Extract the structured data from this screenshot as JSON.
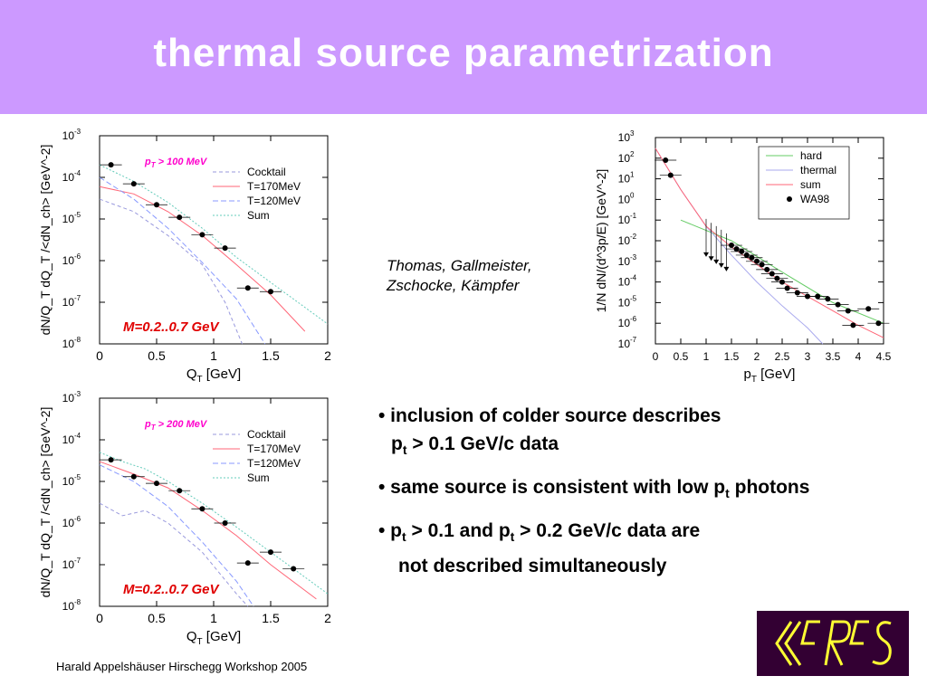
{
  "slide": {
    "title": "thermal source parametrization",
    "header_color": "#cc99ff",
    "citation": [
      "Thomas, Gallmeister,",
      "Zschocke, Kämpfer"
    ],
    "bullets": [
      {
        "parts": [
          "• inclusion of colder source describes",
          "p",
          "t",
          " > 0.1 GeV/c data"
        ]
      },
      {
        "parts": [
          "• same source is consistent with low p",
          "t",
          " photons"
        ]
      },
      {
        "parts": [
          "• p",
          "t",
          " > 0.1 and p",
          "t",
          " > 0.2 GeV/c data are",
          "not described simultaneously"
        ]
      }
    ],
    "footer": "Harald Appelshäuser  Hirschegg Workshop 2005",
    "logo_text": "CERES",
    "logo_colors": {
      "background": "#330033",
      "text": "#ffff33"
    }
  },
  "chart_data": [
    {
      "type": "line",
      "log_y": true,
      "xlim": [
        0,
        2
      ],
      "ylim": [
        1e-08,
        0.001
      ],
      "xticks": [
        "0",
        "0.5",
        "1",
        "1.5",
        "2"
      ],
      "yticks_exp": [
        "-8",
        "-7",
        "-6",
        "-5",
        "-4",
        "-3"
      ],
      "xlabel": [
        "Q",
        "T",
        " [GeV]"
      ],
      "ylabel": "dN/Q_T dQ_T /<dN_ch> [GeV^-2]",
      "annotation": [
        "p",
        "T",
        " > 100 MeV"
      ],
      "mass_label": "M=0.2..0.7 GeV",
      "legend": [
        "Cocktail",
        "T=170MeV",
        "T=120MeV",
        "Sum"
      ],
      "legend_placement": "right",
      "points": [
        {
          "x": 0.1,
          "y": 0.0002
        },
        {
          "x": 0.3,
          "y": 7e-05
        },
        {
          "x": 0.5,
          "y": 2.2e-05
        },
        {
          "x": 0.7,
          "y": 1.1e-05
        },
        {
          "x": 0.9,
          "y": 4.2e-06
        },
        {
          "x": 1.1,
          "y": 2e-06
        },
        {
          "x": 1.3,
          "y": 2.2e-07
        },
        {
          "x": 1.5,
          "y": 1.8e-07
        }
      ],
      "curves": {
        "cocktail": [
          [
            0,
            3e-05
          ],
          [
            0.3,
            1.5e-05
          ],
          [
            0.6,
            4e-06
          ],
          [
            0.9,
            8e-07
          ],
          [
            1.1,
            1e-07
          ],
          [
            1.25,
            1e-08
          ]
        ],
        "t170": [
          [
            0,
            6e-05
          ],
          [
            0.3,
            4e-05
          ],
          [
            0.6,
            1.5e-05
          ],
          [
            0.9,
            4e-06
          ],
          [
            1.2,
            8e-07
          ],
          [
            1.5,
            1.5e-07
          ],
          [
            1.8,
            2e-08
          ]
        ],
        "t120": [
          [
            0,
            0.0001
          ],
          [
            0.3,
            3e-05
          ],
          [
            0.6,
            6e-06
          ],
          [
            0.9,
            9e-07
          ],
          [
            1.2,
            1.2e-07
          ],
          [
            1.45,
            1e-08
          ]
        ],
        "sum": [
          [
            0,
            0.0002
          ],
          [
            0.3,
            8e-05
          ],
          [
            0.6,
            2.5e-05
          ],
          [
            0.9,
            6e-06
          ],
          [
            1.2,
            1.2e-06
          ],
          [
            1.5,
            3e-07
          ],
          [
            2,
            3e-08
          ]
        ]
      }
    },
    {
      "type": "line",
      "log_y": true,
      "xlim": [
        0,
        2
      ],
      "ylim": [
        1e-08,
        0.001
      ],
      "xticks": [
        "0",
        "0.5",
        "1",
        "1.5",
        "2"
      ],
      "yticks_exp": [
        "-8",
        "-7",
        "-6",
        "-5",
        "-4",
        "-3"
      ],
      "xlabel": [
        "Q",
        "T",
        " [GeV]"
      ],
      "ylabel": "dN/Q_T dQ_T /<dN_ch> [GeV^-2]",
      "annotation": [
        "p",
        "T",
        " > 200 MeV"
      ],
      "mass_label": "M=0.2..0.7 GeV",
      "legend": [
        "Cocktail",
        "T=170MeV",
        "T=120MeV",
        "Sum"
      ],
      "legend_placement": "right",
      "points": [
        {
          "x": 0.1,
          "y": 3.3e-05
        },
        {
          "x": 0.3,
          "y": 1.3e-05
        },
        {
          "x": 0.5,
          "y": 9e-06
        },
        {
          "x": 0.7,
          "y": 6e-06
        },
        {
          "x": 0.9,
          "y": 2.2e-06
        },
        {
          "x": 1.1,
          "y": 1e-06
        },
        {
          "x": 1.3,
          "y": 1.1e-07
        },
        {
          "x": 1.5,
          "y": 2e-07
        },
        {
          "x": 1.7,
          "y": 8e-08
        }
      ],
      "curves": {
        "cocktail": [
          [
            0,
            3e-06
          ],
          [
            0.2,
            1.5e-06
          ],
          [
            0.4,
            2e-06
          ],
          [
            0.6,
            1e-06
          ],
          [
            0.9,
            2e-07
          ],
          [
            1.2,
            2e-08
          ],
          [
            1.3,
            1e-08
          ]
        ],
        "t170": [
          [
            0,
            3e-05
          ],
          [
            0.3,
            1.5e-05
          ],
          [
            0.6,
            7e-06
          ],
          [
            0.9,
            2e-06
          ],
          [
            1.2,
            5e-07
          ],
          [
            1.5,
            1e-07
          ],
          [
            1.9,
            1.5e-08
          ]
        ],
        "t120": [
          [
            0,
            2.5e-05
          ],
          [
            0.3,
            1e-05
          ],
          [
            0.6,
            2.5e-06
          ],
          [
            0.9,
            3.5e-07
          ],
          [
            1.2,
            4e-08
          ],
          [
            1.35,
            1e-08
          ]
        ],
        "sum": [
          [
            0,
            5e-05
          ],
          [
            0.2,
            3e-05
          ],
          [
            0.4,
            2e-05
          ],
          [
            0.6,
            1e-05
          ],
          [
            0.9,
            3e-06
          ],
          [
            1.2,
            8e-07
          ],
          [
            1.5,
            2e-07
          ],
          [
            2,
            2e-08
          ]
        ]
      }
    },
    {
      "type": "line",
      "log_y": true,
      "xlim": [
        0,
        4.5
      ],
      "ylim": [
        1e-07,
        1000.0
      ],
      "xticks": [
        "0",
        "0.5",
        "1",
        "1.5",
        "2",
        "2.5",
        "3",
        "3.5",
        "4",
        "4.5"
      ],
      "yticks_exp": [
        "-7",
        "-6",
        "-5",
        "-4",
        "-3",
        "-2",
        "-1",
        "0",
        "1",
        "2",
        "3"
      ],
      "xlabel": [
        "p",
        "T",
        " [GeV]"
      ],
      "ylabel": "1/N dN/(d^3p/E) [GeV^-2]",
      "legend": [
        "hard",
        "thermal",
        "sum",
        "WA98"
      ],
      "legend_placement": "top-right",
      "points": [
        {
          "x": 0.2,
          "y": 80
        },
        {
          "x": 0.3,
          "y": 15
        },
        {
          "x": 1.5,
          "y": 0.006
        },
        {
          "x": 1.6,
          "y": 0.004
        },
        {
          "x": 1.7,
          "y": 0.003
        },
        {
          "x": 1.8,
          "y": 0.002
        },
        {
          "x": 1.9,
          "y": 0.0015
        },
        {
          "x": 2.0,
          "y": 0.001
        },
        {
          "x": 2.1,
          "y": 0.0007
        },
        {
          "x": 2.2,
          "y": 0.0004
        },
        {
          "x": 2.3,
          "y": 0.00025
        },
        {
          "x": 2.4,
          "y": 0.00015
        },
        {
          "x": 2.5,
          "y": 0.0001
        },
        {
          "x": 2.6,
          "y": 5e-05
        },
        {
          "x": 2.8,
          "y": 3e-05
        },
        {
          "x": 3.0,
          "y": 2e-05
        },
        {
          "x": 3.2,
          "y": 2e-05
        },
        {
          "x": 3.4,
          "y": 1.5e-05
        },
        {
          "x": 3.6,
          "y": 8e-06
        },
        {
          "x": 3.8,
          "y": 4e-06
        },
        {
          "x": 3.9,
          "y": 8e-07
        },
        {
          "x": 4.2,
          "y": 5e-06
        },
        {
          "x": 4.4,
          "y": 1e-06
        }
      ],
      "upper_limits": [
        {
          "x": 1.0,
          "y": 0.002
        },
        {
          "x": 1.1,
          "y": 0.0013
        },
        {
          "x": 1.2,
          "y": 0.0009
        },
        {
          "x": 1.3,
          "y": 0.0006
        },
        {
          "x": 1.4,
          "y": 0.0004
        }
      ],
      "curves": {
        "hard": [
          [
            0.5,
            0.1
          ],
          [
            1.5,
            0.01
          ],
          [
            2.5,
            0.0003
          ],
          [
            3.5,
            1e-05
          ],
          [
            4.5,
            1e-06
          ]
        ],
        "thermal": [
          [
            0,
            300
          ],
          [
            0.5,
            3
          ],
          [
            1,
            0.05
          ],
          [
            1.5,
            0.002
          ],
          [
            2,
            0.0001
          ],
          [
            2.5,
            7e-06
          ],
          [
            3,
            6e-07
          ],
          [
            3.3,
            1e-07
          ]
        ],
        "sum": [
          [
            0,
            300
          ],
          [
            0.5,
            3
          ],
          [
            1,
            0.05
          ],
          [
            1.5,
            0.005
          ],
          [
            2,
            0.0007
          ],
          [
            2.5,
            0.0001
          ],
          [
            3,
            2e-05
          ],
          [
            3.5,
            4e-06
          ],
          [
            4,
            8e-07
          ],
          [
            4.5,
            2e-07
          ]
        ]
      }
    }
  ]
}
